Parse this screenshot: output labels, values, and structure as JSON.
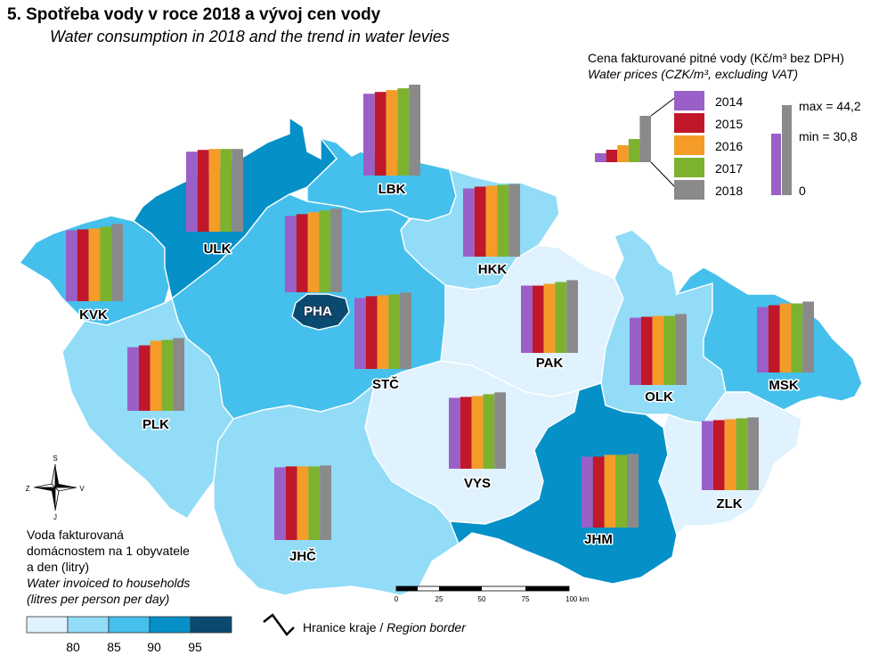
{
  "title_cz": "5. Spotřeba vody v roce 2018 a vývoj cen vody",
  "title_en": "Water consumption in 2018 and the trend in water levies",
  "price_legend": {
    "title_cz": "Cena fakturované pitné vody (Kč/m³ bez DPH)",
    "title_en": "Water prices (CZK/m³, excluding VAT)",
    "years": [
      "2014",
      "2015",
      "2016",
      "2017",
      "2018"
    ],
    "year_colors": [
      "#9b5fc8",
      "#c0182a",
      "#f59b28",
      "#7db22f",
      "#8a8a8a"
    ],
    "max_label": "max = 44,2",
    "min_label": "min = 30,8",
    "zero_label": "0"
  },
  "water_legend": {
    "title_cz_1": "Voda fakturovaná",
    "title_cz_2": "domácnostem na 1 obyvatele",
    "title_cz_3": "a den (litry)",
    "title_en_1": "Water invoiced to households",
    "title_en_2": "(litres per person per day)",
    "breaks": [
      "80",
      "85",
      "90",
      "95"
    ],
    "class_colors": [
      "#dff2fd",
      "#92dcf7",
      "#45c0ec",
      "#0590c8",
      "#0a4a70"
    ]
  },
  "region_border": {
    "label_cz": "Hranice kraje /",
    "label_en": "Region border"
  },
  "scale_bar": {
    "ticks": [
      "0",
      "25",
      "50",
      "75",
      "100 km"
    ]
  },
  "compass": {
    "n": "S",
    "s": "J",
    "w": "Z",
    "e": "V"
  },
  "regions": [
    {
      "code": "KVK",
      "water_class": 2,
      "prices": [
        0.78,
        0.79,
        0.8,
        0.82,
        0.85
      ]
    },
    {
      "code": "ULK",
      "water_class": 3,
      "prices": [
        0.88,
        0.9,
        0.91,
        0.91,
        0.91
      ]
    },
    {
      "code": "LBK",
      "water_class": 2,
      "prices": [
        0.9,
        0.92,
        0.94,
        0.96,
        1.0
      ]
    },
    {
      "code": "HKK",
      "water_class": 1,
      "prices": [
        0.75,
        0.77,
        0.78,
        0.79,
        0.8
      ]
    },
    {
      "code": "PHA",
      "water_class": 4,
      "prices": [
        0.84,
        0.86,
        0.88,
        0.9,
        0.92
      ]
    },
    {
      "code": "STČ",
      "water_class": 2,
      "prices": [
        0.78,
        0.8,
        0.81,
        0.82,
        0.84
      ]
    },
    {
      "code": "PLK",
      "water_class": 1,
      "prices": [
        0.7,
        0.72,
        0.77,
        0.78,
        0.8
      ]
    },
    {
      "code": "PAK",
      "water_class": 0,
      "prices": [
        0.74,
        0.74,
        0.76,
        0.78,
        0.8
      ]
    },
    {
      "code": "OLK",
      "water_class": 1,
      "prices": [
        0.74,
        0.75,
        0.76,
        0.76,
        0.78
      ]
    },
    {
      "code": "MSK",
      "water_class": 2,
      "prices": [
        0.72,
        0.74,
        0.76,
        0.76,
        0.78
      ]
    },
    {
      "code": "VYS",
      "water_class": 0,
      "prices": [
        0.78,
        0.79,
        0.8,
        0.82,
        0.84
      ]
    },
    {
      "code": "JHČ",
      "water_class": 1,
      "prices": [
        0.8,
        0.81,
        0.81,
        0.81,
        0.82
      ]
    },
    {
      "code": "JHM",
      "water_class": 3,
      "prices": [
        0.78,
        0.78,
        0.8,
        0.8,
        0.81
      ]
    },
    {
      "code": "ZLK",
      "water_class": 0,
      "prices": [
        0.76,
        0.77,
        0.78,
        0.79,
        0.8
      ]
    }
  ]
}
